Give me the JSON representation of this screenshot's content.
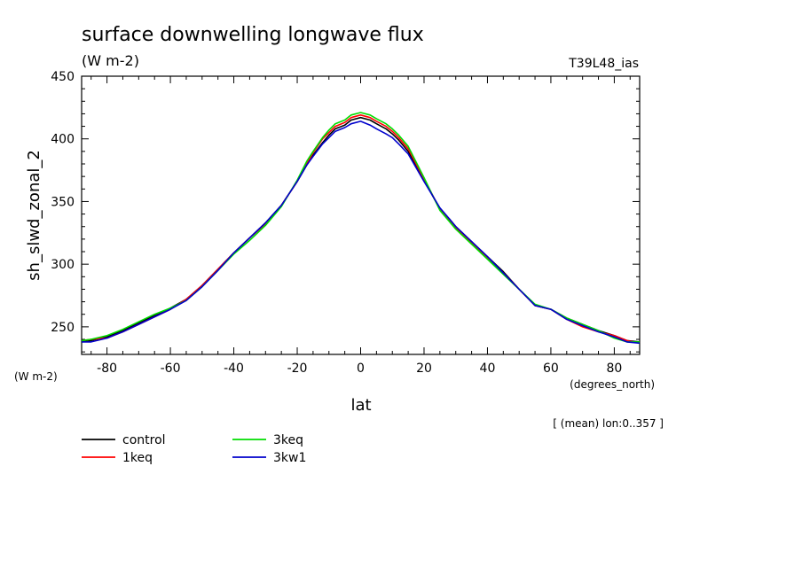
{
  "chart_data": {
    "type": "line",
    "title": "surface downwelling longwave flux",
    "subtitle": "(W m-2)",
    "model_label": "T39L48_ias",
    "ylabel": "sh_slwd_zonal_2",
    "yunits": "(W m-2)",
    "xlabel": "lat",
    "xunits": "(degrees_north)",
    "note": "[ (mean) lon:0..357 ]",
    "xlim": [
      -88,
      88
    ],
    "ylim": [
      228,
      450
    ],
    "xticks": [
      -80,
      -60,
      -40,
      -20,
      0,
      20,
      40,
      60,
      80
    ],
    "xtick_labels": [
      "-80",
      "-60",
      "-40",
      "-20",
      "0",
      "20",
      "40",
      "60",
      "80"
    ],
    "yticks": [
      250,
      300,
      350,
      400,
      450
    ],
    "ytick_labels": [
      "250",
      "300",
      "350",
      "400",
      "450"
    ],
    "x": [
      -88,
      -85,
      -80,
      -75,
      -70,
      -65,
      -60,
      -55,
      -50,
      -45,
      -40,
      -35,
      -30,
      -25,
      -20,
      -17,
      -15,
      -12,
      -10,
      -8,
      -5,
      -3,
      0,
      3,
      5,
      8,
      10,
      12,
      15,
      20,
      25,
      28,
      30,
      35,
      40,
      45,
      50,
      55,
      60,
      65,
      70,
      75,
      80,
      84,
      88
    ],
    "series": [
      {
        "name": "control",
        "color": "#000000",
        "values": [
          238,
          239,
          242,
          247,
          253,
          259,
          265,
          272,
          283,
          296,
          309,
          321,
          333,
          347,
          366,
          379,
          387,
          397,
          403,
          408,
          411,
          415,
          417,
          415,
          412,
          408,
          404,
          399,
          390,
          367,
          344,
          336,
          330,
          318,
          306,
          294,
          280,
          267,
          264,
          257,
          252,
          247,
          243,
          239,
          238
        ]
      },
      {
        "name": "1keq",
        "color": "#ff0000",
        "values": [
          239,
          240,
          241,
          246,
          252,
          258,
          264,
          272,
          283,
          296,
          309,
          321,
          332,
          347,
          366,
          380,
          389,
          400,
          405,
          410,
          413,
          417,
          419,
          417,
          414,
          410,
          406,
          401,
          392,
          368,
          344,
          335,
          329,
          317,
          305,
          293,
          280,
          267,
          264,
          256,
          250,
          246,
          243,
          239,
          237
        ]
      },
      {
        "name": "3keq",
        "color": "#00dd00",
        "values": [
          239,
          240,
          243,
          248,
          254,
          260,
          265,
          271,
          282,
          295,
          308,
          319,
          331,
          346,
          367,
          382,
          390,
          401,
          407,
          412,
          415,
          419,
          421,
          419,
          416,
          412,
          408,
          403,
          394,
          369,
          343,
          334,
          328,
          316,
          304,
          292,
          280,
          268,
          264,
          257,
          252,
          247,
          241,
          238,
          238
        ]
      },
      {
        "name": "3kw1",
        "color": "#0000cc",
        "values": [
          238,
          238,
          241,
          246,
          252,
          258,
          264,
          271,
          282,
          295,
          309,
          321,
          333,
          347,
          366,
          379,
          386,
          396,
          401,
          406,
          409,
          412,
          414,
          411,
          408,
          404,
          401,
          396,
          388,
          366,
          345,
          336,
          330,
          318,
          306,
          293,
          280,
          267,
          264,
          256,
          251,
          246,
          242,
          238,
          237
        ]
      }
    ],
    "legend_position": "bottom-left",
    "grid": false
  }
}
